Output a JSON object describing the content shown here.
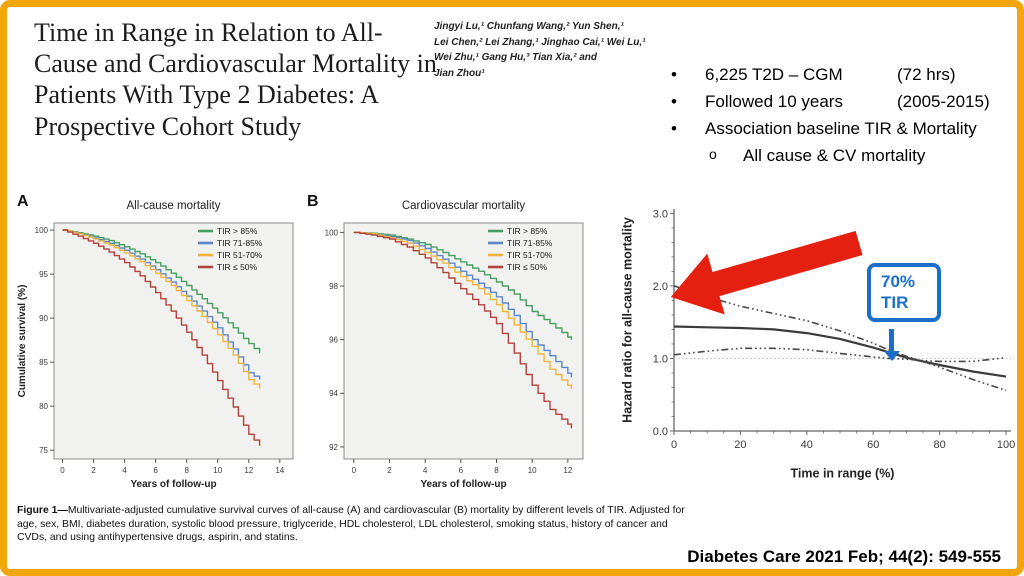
{
  "slide": {
    "border_color": "#F2A60B",
    "title": "Time in Range in Relation to All-Cause and Cardiovascular Mortality in Patients With Type 2 Diabetes: A Prospective Cohort Study",
    "authors": {
      "lines": [
        "Jingyi Lu,¹ Chunfang Wang,² Yun Shen,¹",
        "Lei Chen,² Lei Zhang,¹ Jinghao Cai,¹ Wei Lu,¹",
        "Wei Zhu,¹ Gang Hu,³ Tian Xia,² and",
        "Jian Zhou¹"
      ]
    },
    "bullets": {
      "items": [
        {
          "marker": "•",
          "left": "6,225 T2D – CGM",
          "right": "(72 hrs)"
        },
        {
          "marker": "•",
          "left": "Followed 10 years",
          "right": "(2005-2015)"
        },
        {
          "marker": "•",
          "left": "Association baseline TIR & Mortality",
          "right": ""
        },
        {
          "marker": "o",
          "left": "All cause & CV mortality",
          "right": ""
        }
      ]
    },
    "caption": {
      "prefix": "Figure 1—",
      "body": "Multivariate-adjusted cumulative survival curves of all-cause (A) and cardiovascular (B) mortality by different levels of TIR. Adjusted for age, sex, BMI, diabetes duration, systolic blood pressure, triglyceride, HDL cholesterol, LDL cholesterol, smoking status, history of cancer and CVDs, and using antihypertensive drugs, aspirin, and statins."
    },
    "citation": "Diabetes Care 2021 Feb; 44(2): 549-555"
  },
  "annotations": {
    "arrow_color": "#E62010",
    "callout": {
      "line1": "70%",
      "line2": "TIR",
      "color": "#1B6FC8"
    }
  },
  "chart_data": [
    {
      "type": "line",
      "name": "all-cause-survival",
      "panel": "A",
      "title": "All-cause mortality",
      "xlabel": "Years of follow-up",
      "ylabel": "Cumulative survival (%)",
      "xlim": [
        -0.55,
        14.85
      ],
      "ylim": [
        74.0,
        100.8
      ],
      "xtick_vals": [
        0,
        2,
        4,
        6,
        8,
        10,
        12,
        14
      ],
      "xtick_labels": [
        "0",
        "2",
        "4",
        "6",
        "8",
        "10",
        "12",
        "14"
      ],
      "ytick_vals": [
        75,
        80,
        85,
        90,
        95,
        100
      ],
      "ytick_labels": [
        "75",
        "80",
        "85",
        "90",
        "95",
        "100"
      ],
      "legend_position": "top-right",
      "grid": false,
      "x": [
        0,
        1,
        2,
        3,
        4,
        5,
        6,
        7,
        8,
        9,
        10,
        11,
        12,
        12.7
      ],
      "series": [
        {
          "name": "TIR > 85%",
          "color": "#45A060",
          "y": [
            100,
            99.7,
            99.3,
            98.8,
            98.1,
            97.3,
            96.3,
            95.1,
            93.7,
            92.2,
            90.6,
            88.9,
            87.1,
            86.0
          ]
        },
        {
          "name": "TIR 71-85%",
          "color": "#5B87CC",
          "y": [
            100,
            99.6,
            99.1,
            98.5,
            97.7,
            96.7,
            95.5,
            94.1,
            92.5,
            90.8,
            88.9,
            86.5,
            83.8,
            83.0
          ]
        },
        {
          "name": "TIR 51-70%",
          "color": "#F0B53F",
          "y": [
            100,
            99.6,
            99.0,
            98.3,
            97.4,
            96.4,
            95.1,
            93.7,
            92.0,
            90.2,
            88.1,
            85.8,
            83.0,
            82.0
          ]
        },
        {
          "name": "TIR ≤ 50%",
          "color": "#B2413A",
          "y": [
            100,
            99.3,
            98.5,
            97.5,
            96.3,
            94.8,
            92.9,
            90.8,
            88.4,
            85.8,
            82.9,
            79.9,
            76.8,
            75.5
          ]
        }
      ]
    },
    {
      "type": "line",
      "name": "cardiovascular-survival",
      "panel": "B",
      "title": "Cardiovascular mortality",
      "xlabel": "Years of follow-up",
      "ylabel": "",
      "xlim": [
        -0.55,
        12.85
      ],
      "ylim": [
        91.55,
        100.35
      ],
      "xtick_vals": [
        0,
        2,
        4,
        6,
        8,
        10,
        12
      ],
      "xtick_labels": [
        "0",
        "2",
        "4",
        "6",
        "8",
        "10",
        "12"
      ],
      "ytick_vals": [
        92,
        94,
        96,
        98,
        100
      ],
      "ytick_labels": [
        "92",
        "94",
        "96",
        "98",
        "100"
      ],
      "legend_position": "top-right",
      "grid": false,
      "x": [
        0,
        1,
        2,
        3,
        4,
        5,
        6,
        7,
        8,
        9,
        10,
        11,
        12,
        12.2
      ],
      "series": [
        {
          "name": "TIR > 85%",
          "color": "#45A060",
          "y": [
            100,
            99.97,
            99.9,
            99.75,
            99.55,
            99.25,
            98.9,
            98.55,
            98.15,
            97.7,
            97.05,
            96.6,
            96.1,
            96.0
          ]
        },
        {
          "name": "TIR 71-85%",
          "color": "#5B87CC",
          "y": [
            100,
            99.95,
            99.85,
            99.7,
            99.4,
            99.0,
            98.55,
            98.1,
            97.6,
            96.9,
            96.0,
            95.4,
            94.75,
            94.6
          ]
        },
        {
          "name": "TIR 51-70%",
          "color": "#F0B53F",
          "y": [
            100,
            99.95,
            99.8,
            99.6,
            99.25,
            98.85,
            98.35,
            97.9,
            97.3,
            96.55,
            95.75,
            94.9,
            94.3,
            94.15
          ]
        },
        {
          "name": "TIR ≤ 50%",
          "color": "#B2413A",
          "y": [
            100,
            99.9,
            99.75,
            99.45,
            99.05,
            98.5,
            97.9,
            97.3,
            96.6,
            95.5,
            94.3,
            93.4,
            92.85,
            92.7
          ]
        }
      ]
    },
    {
      "type": "line",
      "name": "hazard-ratio-spline",
      "panel": "",
      "title": "",
      "xlabel": "Time in range (%)",
      "ylabel": "Hazard ratio for all-cause mortality",
      "xlim": [
        0,
        101.5
      ],
      "ylim": [
        0,
        3.06
      ],
      "xtick_vals": [
        0,
        20,
        40,
        60,
        80,
        100
      ],
      "xtick_labels": [
        "0",
        "20",
        "40",
        "60",
        "80",
        "100"
      ],
      "ytick_vals": [
        0,
        1,
        2,
        3
      ],
      "ytick_labels": [
        "0.0",
        "1.0",
        "2.0",
        "3.0"
      ],
      "refline_y": 1.0,
      "grid": false,
      "x": [
        0,
        10,
        20,
        30,
        40,
        50,
        60,
        65,
        70,
        75,
        80,
        90,
        100
      ],
      "series": [
        {
          "name": "hazard ratio",
          "color": "#3B3B3B",
          "width": 2.2,
          "y": [
            1.44,
            1.43,
            1.42,
            1.4,
            1.35,
            1.27,
            1.15,
            1.08,
            1.01,
            0.96,
            0.91,
            0.82,
            0.75
          ]
        },
        {
          "name": "upper 95% CI",
          "color": "#474747",
          "width": 1.6,
          "dash": "7 3 1.6 3 1.6 3 1.6 3",
          "y": [
            2.0,
            1.85,
            1.72,
            1.62,
            1.52,
            1.38,
            1.21,
            1.11,
            1.03,
            0.96,
            0.88,
            0.71,
            0.56
          ]
        },
        {
          "name": "lower 95% CI",
          "color": "#474747",
          "width": 1.6,
          "dash": "7 3 1.6 3 1.6 3 1.6 3",
          "y": [
            1.05,
            1.1,
            1.14,
            1.14,
            1.12,
            1.07,
            1.02,
            1.0,
            0.99,
            0.97,
            0.96,
            0.96,
            1.01
          ]
        }
      ]
    }
  ]
}
